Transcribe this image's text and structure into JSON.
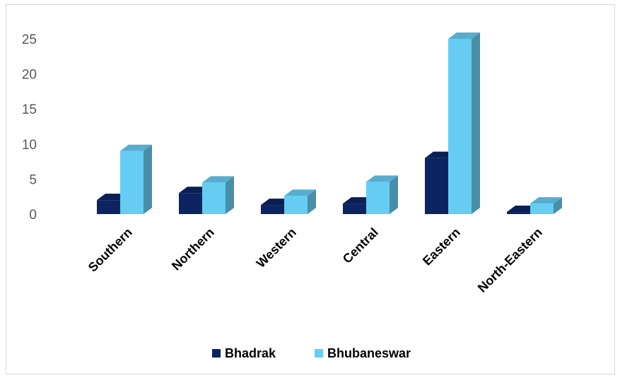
{
  "chart_data": {
    "type": "bar",
    "categories": [
      "Southern",
      "Northern",
      "Western",
      "Central",
      "Eastern",
      "North-Eastern"
    ],
    "series": [
      {
        "name": "Bhadrak",
        "color": "#0c2461",
        "values": [
          2,
          3,
          1.3,
          1.5,
          8,
          0.3
        ]
      },
      {
        "name": "Bhubaneswar",
        "color": "#66ccf2",
        "values": [
          9,
          4.5,
          2.6,
          4.6,
          25,
          1.5
        ]
      }
    ],
    "yticks": [
      "0",
      "5",
      "10",
      "15",
      "20",
      "25"
    ],
    "ylim": [
      0,
      25
    ],
    "grid": false,
    "legend": "bottom",
    "style": "3d-clustered-column"
  }
}
